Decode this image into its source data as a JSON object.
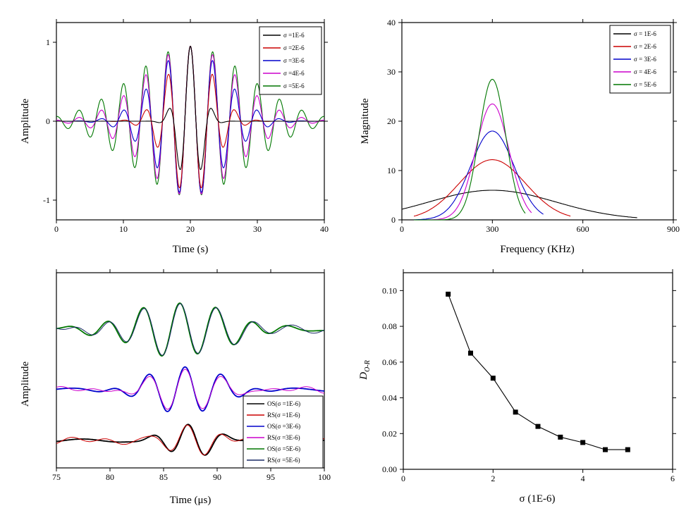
{
  "chart_data": [
    {
      "id": "wave-time",
      "type": "line",
      "title": "",
      "xlabel": "Time (s)",
      "ylabel": "Amplitude",
      "xlim": [
        0,
        40
      ],
      "ylim": [
        -1.25,
        1.25
      ],
      "xticks": [
        0,
        10,
        20,
        30,
        40
      ],
      "xtick_labels": [
        "0",
        "10",
        "20",
        "30",
        "40"
      ],
      "yticks": [
        -1,
        0,
        1
      ],
      "ytick_labels": [
        "-1",
        "0",
        "1"
      ],
      "legend_position": "top-right",
      "series": [
        {
          "name": "σ =1E-6",
          "color": "#000000",
          "sigma": 1,
          "center": 20,
          "freq": 0.3,
          "amp": 0.95
        },
        {
          "name": "σ =2E-6",
          "color": "#cc0000",
          "sigma": 2,
          "center": 20,
          "freq": 0.3,
          "amp": 0.95
        },
        {
          "name": "σ =3E-6",
          "color": "#0000cc",
          "sigma": 3,
          "center": 20,
          "freq": 0.3,
          "amp": 0.95
        },
        {
          "name": "σ =4E-6",
          "color": "#cc00cc",
          "sigma": 4,
          "center": 20,
          "freq": 0.3,
          "amp": 0.95
        },
        {
          "name": "σ =5E-6",
          "color": "#007700",
          "sigma": 5,
          "center": 20,
          "freq": 0.3,
          "amp": 0.95
        }
      ]
    },
    {
      "id": "spectrum",
      "type": "line",
      "title": "",
      "xlabel": "Frequency (KHz)",
      "ylabel": "Magnitude",
      "xlim": [
        0,
        900
      ],
      "ylim": [
        0,
        40
      ],
      "xticks": [
        0,
        300,
        600,
        900
      ],
      "xtick_labels": [
        "0",
        "300",
        "600",
        "900"
      ],
      "yticks": [
        0,
        10,
        20,
        30,
        40
      ],
      "ytick_labels": [
        "0",
        "10",
        "20",
        "30",
        "40"
      ],
      "legend_position": "top-right",
      "series": [
        {
          "name": "σ = 1E-6",
          "color": "#000000",
          "peak": 6.0,
          "center": 300,
          "width": 210,
          "x_end": 780
        },
        {
          "name": "σ = 2E-6",
          "color": "#cc0000",
          "peak": 12.2,
          "center": 300,
          "width": 110,
          "x_end": 560
        },
        {
          "name": "σ = 3E-6",
          "color": "#0000cc",
          "peak": 18.0,
          "center": 300,
          "width": 72,
          "x_end": 470
        },
        {
          "name": "σ = 4E-6",
          "color": "#cc00cc",
          "peak": 23.5,
          "center": 300,
          "width": 55,
          "x_end": 430
        },
        {
          "name": "σ = 5E-6",
          "color": "#007700",
          "peak": 28.5,
          "center": 300,
          "width": 44,
          "x_end": 410
        }
      ]
    },
    {
      "id": "waveform-compare",
      "type": "line",
      "title": "",
      "xlabel": "Time (μs)",
      "ylabel": "Amplitude",
      "xlim": [
        75,
        100
      ],
      "ylim": [
        0,
        1
      ],
      "xticks": [
        75,
        80,
        85,
        90,
        95,
        100
      ],
      "xtick_labels": [
        "75",
        "80",
        "85",
        "90",
        "95",
        "100"
      ],
      "legend_position": "bottom-right",
      "series": [
        {
          "name": "OS(σ =1E-6)",
          "color": "#000000",
          "group": 1,
          "offset": 0.14,
          "amp": 0.09,
          "center": 87.5,
          "width": 2.0,
          "period": 3.4,
          "variant": "os"
        },
        {
          "name": "RS(σ =1E-6)",
          "color": "#cc0000",
          "group": 1,
          "offset": 0.14,
          "amp": 0.09,
          "center": 87.5,
          "width": 2.0,
          "period": 3.4,
          "variant": "rs"
        },
        {
          "name": "OS(σ =3E-6)",
          "color": "#0000cc",
          "group": 2,
          "offset": 0.4,
          "amp": 0.125,
          "center": 87.0,
          "width": 3.2,
          "period": 3.4,
          "variant": "os"
        },
        {
          "name": "RS(σ =3E-6)",
          "color": "#cc00cc",
          "group": 2,
          "offset": 0.4,
          "amp": 0.125,
          "center": 87.0,
          "width": 3.2,
          "period": 3.4,
          "variant": "rs"
        },
        {
          "name": "OS(σ =5E-6)",
          "color": "#007700",
          "group": 3,
          "offset": 0.71,
          "amp": 0.14,
          "center": 86.5,
          "width": 4.5,
          "period": 3.4,
          "variant": "os"
        },
        {
          "name": "RS(σ =5E-6)",
          "color": "#1a2a66",
          "group": 3,
          "offset": 0.71,
          "amp": 0.14,
          "center": 86.5,
          "width": 4.5,
          "period": 3.4,
          "variant": "rs"
        }
      ]
    },
    {
      "id": "distance",
      "type": "line",
      "title": "",
      "xlabel": "σ (1E-6)",
      "ylabel": "D_{O-R}",
      "ylabel_main": "D",
      "ylabel_sub": "O-R",
      "xlim": [
        0,
        6
      ],
      "ylim": [
        0,
        0.11
      ],
      "xticks": [
        0,
        2,
        4,
        6
      ],
      "xtick_labels": [
        "0",
        "2",
        "4",
        "6"
      ],
      "yticks": [
        0,
        0.02,
        0.04,
        0.06,
        0.08,
        0.1
      ],
      "ytick_labels": [
        "0.00",
        "0.02",
        "0.04",
        "0.06",
        "0.08",
        "0.10"
      ],
      "series": [
        {
          "name": "D_{O-R}",
          "color": "#000000",
          "marker": "square",
          "x": [
            1,
            1.5,
            2,
            2.5,
            3,
            3.5,
            4,
            4.5,
            5
          ],
          "y": [
            0.098,
            0.065,
            0.051,
            0.032,
            0.024,
            0.018,
            0.015,
            0.011,
            0.011
          ]
        }
      ]
    }
  ]
}
